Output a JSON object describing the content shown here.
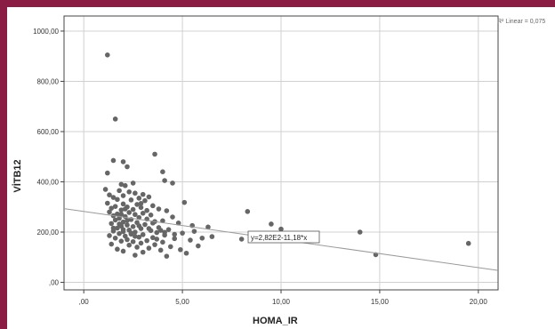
{
  "chart_data": {
    "type": "scatter",
    "xlabel": "HOMA_IR",
    "ylabel": "VİTB12",
    "xlim": [
      -1,
      21
    ],
    "ylim": [
      -30,
      1060
    ],
    "x_ticks": [
      ",00",
      "5,00",
      "10,00",
      "15,00",
      "20,00"
    ],
    "x_tick_values": [
      0,
      5,
      10,
      15,
      20
    ],
    "y_ticks": [
      ",00",
      "200,00",
      "400,00",
      "600,00",
      "800,00",
      "1000,00"
    ],
    "y_tick_values": [
      0,
      200,
      400,
      600,
      800,
      1000
    ],
    "grid": true,
    "point_color": "#666666",
    "fit_line": {
      "label": "R² Linear = 0,075",
      "equation": "y=2,82E2-11,18*x",
      "intercept": 282,
      "slope": -11.18,
      "color": "#9a9a9a"
    },
    "points": [
      [
        1.2,
        905
      ],
      [
        1.6,
        650
      ],
      [
        3.6,
        510
      ],
      [
        1.5,
        485
      ],
      [
        2.0,
        480
      ],
      [
        2.2,
        460
      ],
      [
        4.0,
        440
      ],
      [
        1.2,
        435
      ],
      [
        4.1,
        405
      ],
      [
        4.5,
        395
      ],
      [
        2.5,
        395
      ],
      [
        1.9,
        390
      ],
      [
        2.1,
        385
      ],
      [
        1.1,
        370
      ],
      [
        1.8,
        365
      ],
      [
        2.3,
        360
      ],
      [
        2.6,
        355
      ],
      [
        3.0,
        350
      ],
      [
        1.3,
        348
      ],
      [
        2.0,
        345
      ],
      [
        3.3,
        340
      ],
      [
        1.5,
        338
      ],
      [
        2.8,
        335
      ],
      [
        1.7,
        330
      ],
      [
        2.4,
        328
      ],
      [
        3.1,
        325
      ],
      [
        5.1,
        318
      ],
      [
        1.2,
        315
      ],
      [
        2.0,
        312
      ],
      [
        2.7,
        310
      ],
      [
        3.5,
        305
      ],
      [
        1.6,
        302
      ],
      [
        2.2,
        300
      ],
      [
        2.9,
        298
      ],
      [
        1.4,
        295
      ],
      [
        3.8,
        292
      ],
      [
        2.5,
        290
      ],
      [
        1.9,
        288
      ],
      [
        4.2,
        285
      ],
      [
        8.3,
        282
      ],
      [
        1.3,
        280
      ],
      [
        2.3,
        278
      ],
      [
        3.0,
        275
      ],
      [
        1.7,
        272
      ],
      [
        2.6,
        270
      ],
      [
        3.4,
        268
      ],
      [
        1.5,
        265
      ],
      [
        2.1,
        262
      ],
      [
        4.5,
        260
      ],
      [
        2.8,
        258
      ],
      [
        1.8,
        255
      ],
      [
        3.2,
        252
      ],
      [
        2.4,
        250
      ],
      [
        1.6,
        248
      ],
      [
        4.0,
        245
      ],
      [
        3.6,
        242
      ],
      [
        2.0,
        240
      ],
      [
        2.7,
        238
      ],
      [
        4.8,
        236
      ],
      [
        1.4,
        234
      ],
      [
        9.5,
        232
      ],
      [
        3.1,
        230
      ],
      [
        2.2,
        228
      ],
      [
        5.5,
        226
      ],
      [
        1.9,
        224
      ],
      [
        2.5,
        222
      ],
      [
        6.3,
        220
      ],
      [
        3.8,
        218
      ],
      [
        1.7,
        216
      ],
      [
        2.9,
        214
      ],
      [
        10.0,
        212
      ],
      [
        4.3,
        210
      ],
      [
        2.3,
        208
      ],
      [
        3.4,
        206
      ],
      [
        1.5,
        204
      ],
      [
        2.0,
        202
      ],
      [
        14.0,
        200
      ],
      [
        2.6,
        200
      ],
      [
        3.7,
        198
      ],
      [
        5.0,
        196
      ],
      [
        1.8,
        194
      ],
      [
        2.4,
        192
      ],
      [
        3.0,
        190
      ],
      [
        4.1,
        188
      ],
      [
        1.3,
        186
      ],
      [
        2.1,
        184
      ],
      [
        6.5,
        182
      ],
      [
        2.8,
        180
      ],
      [
        3.5,
        178
      ],
      [
        1.6,
        176
      ],
      [
        4.6,
        174
      ],
      [
        8.0,
        172
      ],
      [
        2.2,
        170
      ],
      [
        5.4,
        168
      ],
      [
        3.2,
        166
      ],
      [
        1.9,
        164
      ],
      [
        2.5,
        162
      ],
      [
        19.5,
        155
      ],
      [
        4.0,
        160
      ],
      [
        2.9,
        156
      ],
      [
        1.4,
        152
      ],
      [
        3.6,
        150
      ],
      [
        2.3,
        148
      ],
      [
        5.8,
        145
      ],
      [
        4.4,
        142
      ],
      [
        2.7,
        140
      ],
      [
        3.3,
        136
      ],
      [
        1.7,
        132
      ],
      [
        4.9,
        130
      ],
      [
        3.9,
        128
      ],
      [
        2.0,
        124
      ],
      [
        3.0,
        120
      ],
      [
        5.2,
        116
      ],
      [
        14.8,
        110
      ],
      [
        2.6,
        108
      ],
      [
        4.2,
        104
      ],
      [
        2.4,
        196
      ],
      [
        2.0,
        210
      ],
      [
        3.3,
        214
      ],
      [
        2.8,
        225
      ],
      [
        1.8,
        232
      ],
      [
        3.5,
        236
      ],
      [
        2.2,
        246
      ],
      [
        4.1,
        199
      ],
      [
        3.7,
        172
      ],
      [
        2.6,
        183
      ],
      [
        1.5,
        216
      ],
      [
        3.9,
        207
      ],
      [
        4.6,
        191
      ],
      [
        5.6,
        203
      ],
      [
        6.0,
        176
      ],
      [
        2.1,
        292
      ],
      [
        2.9,
        314
      ],
      [
        3.2,
        286
      ],
      [
        1.9,
        271
      ]
    ]
  }
}
